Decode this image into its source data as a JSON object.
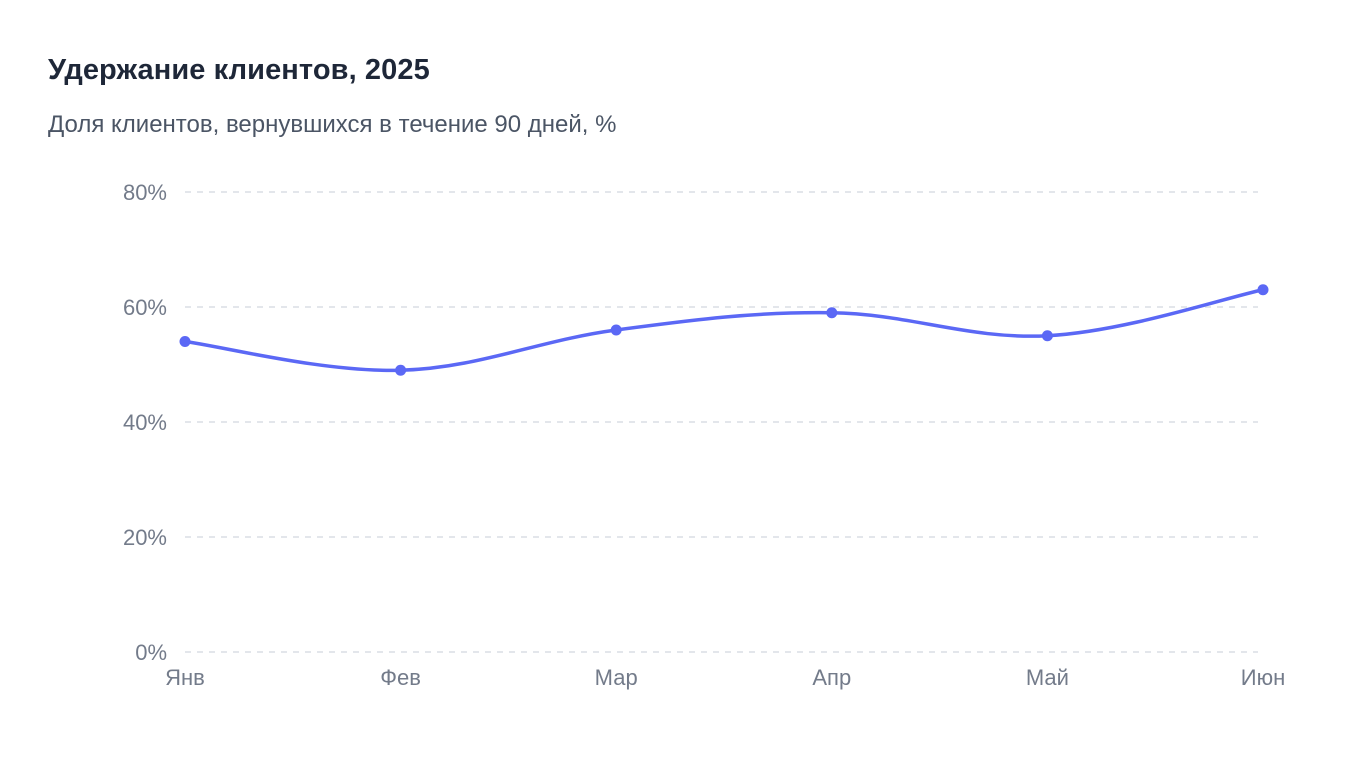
{
  "chart_data": {
    "type": "line",
    "title": "Удержание клиентов, 2025",
    "subtitle": "Доля клиентов, вернувшихся в течение 90 дней, %",
    "categories": [
      "Янв",
      "Фев",
      "Мар",
      "Апр",
      "Май",
      "Июн"
    ],
    "series": [
      {
        "values": [
          54,
          49,
          56,
          59,
          55,
          63
        ],
        "color": "#5b68f5"
      }
    ],
    "ylim": [
      0,
      80
    ],
    "yticks": [
      0,
      20,
      40,
      60,
      80
    ],
    "ytick_labels": [
      "0%",
      "20%",
      "40%",
      "60%",
      "80%"
    ],
    "grid": true,
    "legend": "none",
    "colors": {
      "title": "#1e2738",
      "subtitle": "#4b5565",
      "ticks": "#737b8a",
      "grid": "#e3e6eb"
    }
  }
}
